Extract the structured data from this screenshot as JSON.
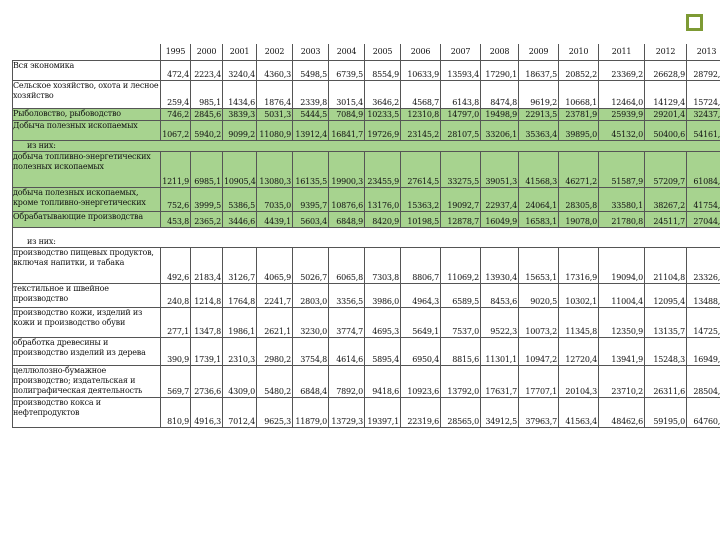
{
  "years": [
    "1995",
    "2000",
    "2001",
    "2002",
    "2003",
    "2004",
    "2005",
    "2006",
    "2007",
    "2008",
    "2009",
    "2010",
    "2011",
    "2012",
    "2013"
  ],
  "rows": [
    {
      "label": "Вся экономика",
      "values": [
        "472,4",
        "2223,4",
        "3240,4",
        "4360,3",
        "5498,5",
        "6739,5",
        "8554,9",
        "10633,9",
        "13593,4",
        "17290,1",
        "18637,5",
        "20852,2",
        "23369,2",
        "26628,9",
        "28792,0"
      ]
    },
    {
      "label": "Сельское хозяйство, охота и лесное хозяйство",
      "values": [
        "259,4",
        "985,1",
        "1434,6",
        "1876,4",
        "2339,8",
        "3015,4",
        "3646,2",
        "4568,7",
        "6143,8",
        "8474,8",
        "9619,2",
        "10668,1",
        "12464,0",
        "14129,4",
        "15724,0"
      ]
    },
    {
      "label": "Рыболовство, рыбоводство",
      "values": [
        "746,2",
        "2845,6",
        "3839,3",
        "5031,3",
        "5444,5",
        "7084,9",
        "10233,5",
        "12310,8",
        "14797,0",
        "19498,9",
        "22913,5",
        "23781,9",
        "25939,9",
        "29201,4",
        "32437,3"
      ]
    },
    {
      "label": "Добыча полезных ископаемых",
      "values": [
        "1067,2",
        "5940,2",
        "9099,2",
        "11080,9",
        "13912,4",
        "16841,7",
        "19726,9",
        "23145,2",
        "28107,5",
        "33206,1",
        "35363,4",
        "39895,0",
        "45132,0",
        "50400,6",
        "54161,2"
      ]
    },
    {
      "label": "из них:",
      "values": []
    },
    {
      "label": "добыча топливно-энергетических полезных ископаемых",
      "values": [
        "1211,9",
        "6985,1",
        "10905,4",
        "13080,3",
        "16135,5",
        "19900,3",
        "23455,9",
        "27614,5",
        "33275,5",
        "39051,3",
        "41568,3",
        "46271,2",
        "51587,9",
        "57209,7",
        "61084,1"
      ]
    },
    {
      "label": "добыча полезных ископаемых, кроме топливно-энергетических",
      "values": [
        "752,6",
        "3999,5",
        "5386,5",
        "7035,0",
        "9395,7",
        "10876,6",
        "13176,0",
        "15363,2",
        "19092,7",
        "22937,4",
        "24064,1",
        "28305,8",
        "33580,1",
        "38267,2",
        "41754,4"
      ]
    },
    {
      "label": "Обрабатывающие производства",
      "values": [
        "453,8",
        "2365,2",
        "3446,6",
        "4439,1",
        "5603,4",
        "6848,9",
        "8420,9",
        "10198,5",
        "12878,7",
        "16049,9",
        "16583,1",
        "19078,0",
        "21780,8",
        "24511,7",
        "27044,5"
      ]
    },
    {
      "label": "из них:",
      "values": []
    },
    {
      "label": "производство пищевых продуктов, включая напитки, и табака",
      "values": [
        "492,6",
        "2183,4",
        "3126,7",
        "4065,9",
        "5026,7",
        "6065,8",
        "7303,8",
        "8806,7",
        "11069,2",
        "13930,4",
        "15653,1",
        "17316,9",
        "19094,0",
        "21104,8",
        "23326,9"
      ]
    },
    {
      "label": "текстильное и швейное производство",
      "values": [
        "240,8",
        "1214,8",
        "1764,8",
        "2241,7",
        "2803,0",
        "3356,5",
        "3986,0",
        "4964,3",
        "6589,5",
        "8453,6",
        "9020,5",
        "10302,1",
        "11004,4",
        "12095,4",
        "13488,5"
      ]
    },
    {
      "label": "производство кожи, изделий из кожи и производство обуви",
      "values": [
        "277,1",
        "1347,8",
        "1986,1",
        "2621,1",
        "3230,0",
        "3774,7",
        "4695,3",
        "5649,1",
        "7537,0",
        "9522,3",
        "10073,2",
        "11345,8",
        "12350,9",
        "13135,7",
        "14725,1"
      ]
    },
    {
      "label": "обработка древесины и производство изделий из дерева",
      "values": [
        "390,9",
        "1739,1",
        "2310,3",
        "2980,2",
        "3754,8",
        "4614,6",
        "5895,4",
        "6950,4",
        "8815,6",
        "11301,1",
        "10947,2",
        "12720,4",
        "13941,9",
        "15248,3",
        "16949,7"
      ]
    },
    {
      "label": "целлюлозно-бумажное производство; издательская и полиграфическая деятельность",
      "values": [
        "569,7",
        "2736,6",
        "4309,0",
        "5480,2",
        "6848,4",
        "7892,0",
        "9418,6",
        "10923,6",
        "13792,0",
        "17631,7",
        "17707,1",
        "20104,3",
        "23710,2",
        "26311,6",
        "28504,9"
      ]
    },
    {
      "label": "производство кокса и нефтепродуктов",
      "values": [
        "810,9",
        "4916,3",
        "7012,4",
        "9625,3",
        "11879,0",
        "13729,3",
        "19397,1",
        "22319,6",
        "28565,0",
        "34912,5",
        "37963,7",
        "41563,4",
        "48462,6",
        "59195,0",
        "64760,1"
      ]
    }
  ]
}
